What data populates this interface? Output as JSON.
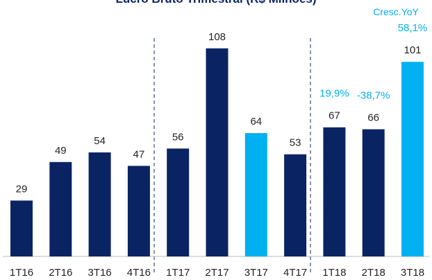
{
  "chart_data": {
    "type": "bar",
    "title": "Lucro Bruto Trimestral (R$ Milhões)",
    "annotation_title": "Cresc.YoY",
    "categories": [
      "1T16",
      "2T16",
      "3T16",
      "4T16",
      "1T17",
      "2T17",
      "3T17",
      "4T17",
      "1T18",
      "2T18",
      "3T18"
    ],
    "values": [
      29,
      49,
      54,
      47,
      56,
      108,
      64,
      53,
      67,
      66,
      101
    ],
    "colors": [
      "#0a2463",
      "#0a2463",
      "#0a2463",
      "#0a2463",
      "#0a2463",
      "#0a2463",
      "#00b0f0",
      "#0a2463",
      "#0a2463",
      "#0a2463",
      "#00b0f0"
    ],
    "annotations": [
      null,
      null,
      null,
      null,
      null,
      null,
      null,
      null,
      "19,9%",
      "-38,7%",
      "58,1%"
    ],
    "annotation_color": "#00b0f0"
  }
}
